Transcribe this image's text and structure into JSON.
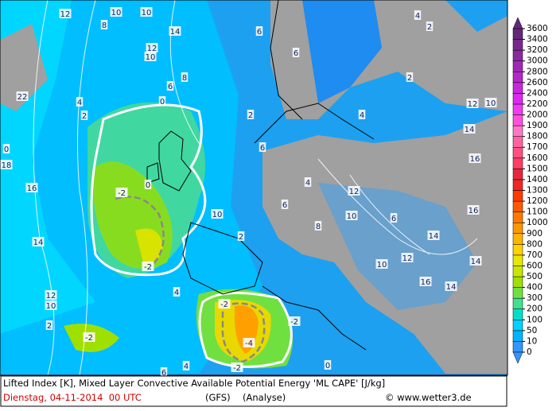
{
  "colorbar": {
    "ticks": [
      0,
      10,
      50,
      100,
      200,
      300,
      400,
      500,
      600,
      700,
      800,
      900,
      1000,
      1100,
      1200,
      1300,
      1400,
      1500,
      1600,
      1700,
      1800,
      1900,
      2000,
      2200,
      2400,
      2600,
      2800,
      3000,
      3200,
      3400,
      3600
    ],
    "colors": [
      "#3296ff",
      "#00b4ff",
      "#00d2ff",
      "#00e0c8",
      "#40e090",
      "#70e040",
      "#a0e000",
      "#c8e600",
      "#e8e800",
      "#ffd200",
      "#ffb400",
      "#ff9600",
      "#ff7800",
      "#ff5a00",
      "#ff3c00",
      "#f02828",
      "#e6283c",
      "#ff3c64",
      "#ff5082",
      "#ff64a0",
      "#ff78c8",
      "#ff50dc",
      "#f03cf0",
      "#dc28f0",
      "#c828dc",
      "#b428c8",
      "#a028b4",
      "#8c28a0",
      "#78288c",
      "#642878"
    ]
  },
  "contour_labels": [
    12,
    10,
    10,
    8,
    14,
    12,
    10,
    8,
    6,
    4,
    22,
    0,
    2,
    0,
    18,
    16,
    -2,
    0,
    14,
    -2,
    12,
    10,
    2,
    -2,
    -2,
    -4,
    -2,
    -2,
    6,
    6,
    2,
    6,
    8,
    12,
    10,
    6,
    14,
    12,
    10,
    16,
    14,
    14,
    16,
    16,
    14,
    10,
    12,
    4,
    2,
    2,
    4,
    4,
    6,
    10,
    2,
    4,
    6,
    4,
    0
  ],
  "footer": {
    "description": "Lifted Index [K], Mixed Layer Convective Available Potential Energy 'ML CAPE' [J/kg]",
    "date": "Dienstag, 04-11-2014  00 UTC",
    "model": "(GFS)",
    "run": "(Analyse)",
    "credit": "© www.wetter3.de"
  }
}
